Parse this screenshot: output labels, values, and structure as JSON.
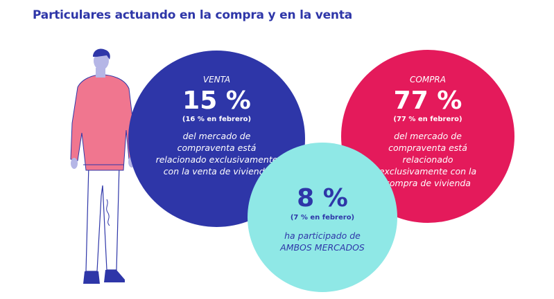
{
  "title": "Particulares actuando en la compra y en la venta",
  "venta": {
    "label": "VENTA",
    "value": "15 %",
    "previous": "(16 % en febrero)",
    "description": "del mercado de compraventa está relacionado exclusivamente con la venta de vivienda",
    "color": "#2e36a8"
  },
  "compra": {
    "label": "COMPRA",
    "value": "77 %",
    "previous": "(77 % en febrero)",
    "description": "del mercado de compraventa está relacionado exclusivamente con la compra de vivienda",
    "color": "#e41a5b"
  },
  "ambos": {
    "value": "8 %",
    "previous": "(7 % en febrero)",
    "description": "ha participado de AMBOS MERCADOS",
    "color": "#8fe8e6"
  },
  "illustration": {
    "icon": "person-illustration-icon"
  }
}
